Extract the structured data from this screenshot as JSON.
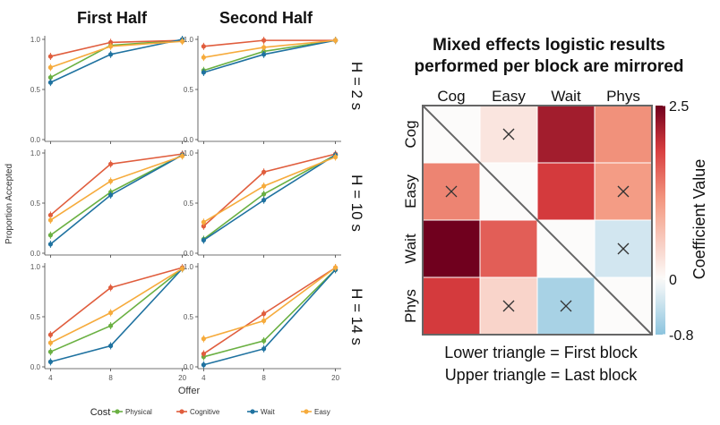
{
  "left_figure": {
    "column_titles": [
      "First Half",
      "Second Half"
    ],
    "row_labels": [
      "H = 2 s",
      "H = 10 s",
      "H = 14 s"
    ],
    "y_axis_label": "Proportion Accepted",
    "x_axis_label": "Offer",
    "legend_title": "Cost"
  },
  "right_figure": {
    "title_line1": "Mixed effects logistic results",
    "title_line2": "performed per block are mirrored",
    "colorbar_title": "Coefficient Value",
    "caption_line1": "Lower triangle = First block",
    "caption_line2": "Upper triangle = Last block"
  },
  "chart_data": [
    {
      "type": "line",
      "facets": "3 rows (H = 2 s, 10 s, 14 s) x 2 columns (First Half, Second Half)",
      "x": [
        4,
        8,
        20
      ],
      "x_tick_labels": [
        "4",
        "8",
        "20"
      ],
      "ylim": [
        0,
        1
      ],
      "y_tick_labels": [
        "0.0",
        "0.5",
        "1.0"
      ],
      "xlabel": "Offer",
      "ylabel": "Proportion Accepted",
      "legend_title": "Cost",
      "legend_position": "bottom",
      "colors": {
        "Physical": "#6ab042",
        "Cognitive": "#e05d3d",
        "Wait": "#1f72a0",
        "Easy": "#f6ab3c"
      },
      "series_order": [
        "Physical",
        "Cognitive",
        "Wait",
        "Easy"
      ],
      "panels": [
        {
          "row": 0,
          "col": 0,
          "series": {
            "Physical": [
              0.62,
              0.94,
              0.99
            ],
            "Cognitive": [
              0.83,
              0.97,
              0.99
            ],
            "Wait": [
              0.57,
              0.85,
              1.0
            ],
            "Easy": [
              0.72,
              0.93,
              0.98
            ]
          }
        },
        {
          "row": 0,
          "col": 1,
          "series": {
            "Physical": [
              0.69,
              0.88,
              0.99
            ],
            "Cognitive": [
              0.93,
              0.99,
              0.99
            ],
            "Wait": [
              0.67,
              0.85,
              0.99
            ],
            "Easy": [
              0.82,
              0.92,
              0.99
            ]
          }
        },
        {
          "row": 1,
          "col": 0,
          "series": {
            "Physical": [
              0.18,
              0.61,
              0.98
            ],
            "Cognitive": [
              0.38,
              0.89,
              0.99
            ],
            "Wait": [
              0.09,
              0.58,
              0.98
            ],
            "Easy": [
              0.33,
              0.72,
              0.97
            ]
          }
        },
        {
          "row": 1,
          "col": 1,
          "series": {
            "Physical": [
              0.14,
              0.59,
              0.98
            ],
            "Cognitive": [
              0.27,
              0.81,
              0.99
            ],
            "Wait": [
              0.13,
              0.53,
              0.98
            ],
            "Easy": [
              0.31,
              0.67,
              0.96
            ]
          }
        },
        {
          "row": 2,
          "col": 0,
          "series": {
            "Physical": [
              0.15,
              0.41,
              0.98
            ],
            "Cognitive": [
              0.32,
              0.79,
              0.99
            ],
            "Wait": [
              0.05,
              0.21,
              0.98
            ],
            "Easy": [
              0.24,
              0.54,
              0.98
            ]
          }
        },
        {
          "row": 2,
          "col": 1,
          "series": {
            "Physical": [
              0.1,
              0.26,
              0.97
            ],
            "Cognitive": [
              0.13,
              0.53,
              0.99
            ],
            "Wait": [
              0.02,
              0.18,
              0.97
            ],
            "Easy": [
              0.28,
              0.46,
              0.99
            ]
          }
        }
      ]
    },
    {
      "type": "heatmap",
      "title": "Mixed effects logistic results performed per block are mirrored",
      "rows": [
        "Cog",
        "Easy",
        "Wait",
        "Phys"
      ],
      "columns": [
        "Cog",
        "Easy",
        "Wait",
        "Phys"
      ],
      "values": [
        [
          0.0,
          0.25,
          2.2,
          1.2
        ],
        [
          1.3,
          0.0,
          1.9,
          1.1
        ],
        [
          2.5,
          1.6,
          0.0,
          -0.3
        ],
        [
          1.9,
          0.45,
          -0.6,
          0.0
        ]
      ],
      "crossed": [
        [
          0,
          1
        ],
        [
          1,
          0
        ],
        [
          1,
          3
        ],
        [
          2,
          3
        ],
        [
          3,
          1
        ],
        [
          3,
          2
        ]
      ],
      "colorbar_label": "Coefficient Value",
      "colorbar_range": [
        -0.8,
        2.5
      ],
      "colorbar_ticks": [
        "2.5",
        "0",
        "-0.8"
      ],
      "caption": [
        "Lower triangle = First block",
        "Upper triangle = Last block"
      ]
    }
  ]
}
